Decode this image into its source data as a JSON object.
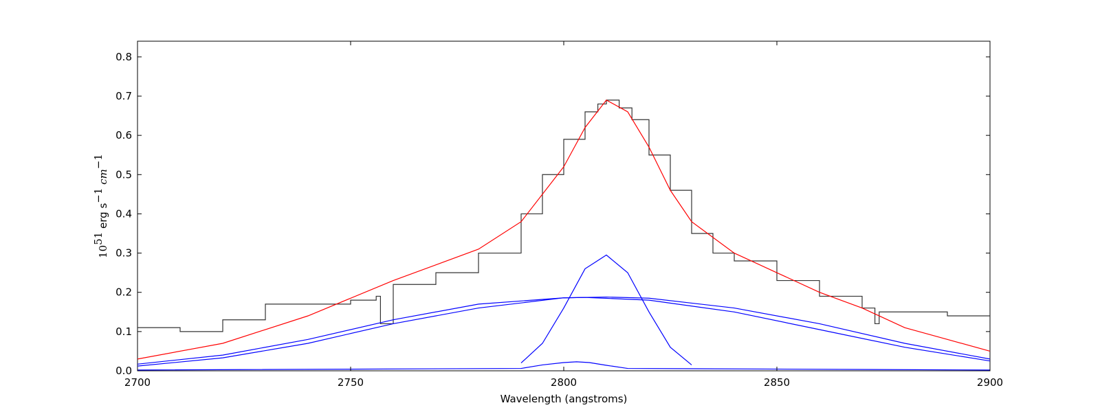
{
  "chart_data": {
    "type": "line",
    "title": "",
    "xlabel": "Wavelength (angstroms)",
    "ylabel": {
      "prefix": "10",
      "prefix_exp": "51",
      "unit1": "erg s",
      "unit1_exp": "−1",
      "unit2": "cm",
      "unit2_exp": "−1"
    },
    "xlim": [
      2700,
      2900
    ],
    "ylim": [
      0.0,
      0.84
    ],
    "xticks": [
      "2700",
      "2750",
      "2800",
      "2850",
      "2900"
    ],
    "xtick_values": [
      2700,
      2750,
      2800,
      2850,
      2900
    ],
    "yticks": [
      "0.0",
      "0.1",
      "0.2",
      "0.3",
      "0.4",
      "0.5",
      "0.6",
      "0.7",
      "0.8"
    ],
    "ytick_values": [
      0.0,
      0.1,
      0.2,
      0.3,
      0.4,
      0.5,
      0.6,
      0.7,
      0.8
    ],
    "grid": false,
    "colors": {
      "data": "#333333",
      "total_fit": "#ff0000",
      "components": "#0000ff"
    },
    "series": [
      {
        "role": "observed",
        "style": "steps",
        "x": [
          2700,
          2710,
          2720,
          2730,
          2740,
          2750,
          2756,
          2757,
          2760,
          2770,
          2780,
          2790,
          2795,
          2800,
          2805,
          2808,
          2810,
          2813,
          2816,
          2820,
          2825,
          2830,
          2835,
          2840,
          2850,
          2860,
          2870,
          2873,
          2874,
          2880,
          2890,
          2900
        ],
        "y": [
          0.11,
          0.1,
          0.13,
          0.17,
          0.17,
          0.18,
          0.19,
          0.12,
          0.22,
          0.25,
          0.3,
          0.4,
          0.5,
          0.59,
          0.66,
          0.68,
          0.69,
          0.67,
          0.64,
          0.55,
          0.46,
          0.35,
          0.3,
          0.28,
          0.23,
          0.19,
          0.16,
          0.12,
          0.15,
          0.15,
          0.14,
          0.14
        ]
      },
      {
        "role": "total_fit",
        "x": [
          2700,
          2720,
          2740,
          2760,
          2780,
          2790,
          2800,
          2805,
          2810,
          2815,
          2820,
          2825,
          2830,
          2840,
          2850,
          2860,
          2870,
          2880,
          2890,
          2900
        ],
        "y": [
          0.03,
          0.07,
          0.14,
          0.23,
          0.31,
          0.38,
          0.52,
          0.62,
          0.69,
          0.66,
          0.57,
          0.46,
          0.38,
          0.3,
          0.25,
          0.2,
          0.16,
          0.11,
          0.08,
          0.05
        ]
      },
      {
        "role": "component",
        "x": [
          2700,
          2720,
          2740,
          2760,
          2780,
          2800,
          2810,
          2820,
          2840,
          2860,
          2880,
          2900
        ],
        "y": [
          0.017,
          0.04,
          0.08,
          0.13,
          0.17,
          0.186,
          0.188,
          0.185,
          0.16,
          0.12,
          0.07,
          0.03
        ]
      },
      {
        "role": "component",
        "x": [
          2700,
          2720,
          2740,
          2760,
          2780,
          2800,
          2805,
          2820,
          2840,
          2860,
          2880,
          2900
        ],
        "y": [
          0.012,
          0.033,
          0.07,
          0.12,
          0.16,
          0.186,
          0.187,
          0.18,
          0.15,
          0.105,
          0.06,
          0.025
        ]
      },
      {
        "role": "component",
        "x": [
          2790,
          2795,
          2800,
          2805,
          2810,
          2815,
          2820,
          2825,
          2830
        ],
        "y": [
          0.02,
          0.07,
          0.16,
          0.26,
          0.295,
          0.25,
          0.15,
          0.06,
          0.015
        ]
      },
      {
        "role": "component",
        "x": [
          2700,
          2790,
          2795,
          2800,
          2803,
          2806,
          2810,
          2815,
          2900
        ],
        "y": [
          0.002,
          0.006,
          0.015,
          0.021,
          0.023,
          0.021,
          0.014,
          0.006,
          0.002
        ]
      }
    ]
  }
}
